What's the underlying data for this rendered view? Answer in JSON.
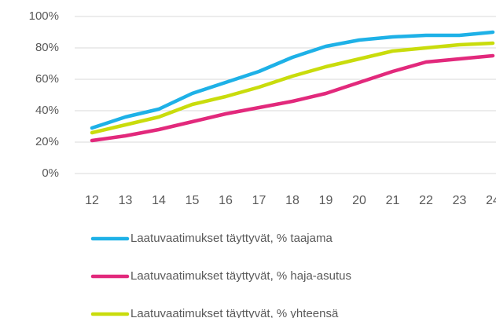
{
  "chart_data": {
    "type": "line",
    "categories": [
      "12",
      "13",
      "14",
      "15",
      "16",
      "17",
      "18",
      "19",
      "20",
      "21",
      "22",
      "23",
      "24"
    ],
    "series": [
      {
        "name": "Laatuvaatimukset täyttyvät, % taajama",
        "color": "#1eb1e7",
        "values": [
          29,
          36,
          41,
          51,
          58,
          65,
          74,
          81,
          85,
          87,
          88,
          88,
          90
        ]
      },
      {
        "name": "Laatuvaatimukset täyttyvät, % haja-asutus",
        "color": "#e2297c",
        "values": [
          21,
          24,
          28,
          33,
          38,
          42,
          46,
          51,
          58,
          65,
          71,
          73,
          75
        ]
      },
      {
        "name": "Laatuvaatimukset täyttyvät, % yhteensä",
        "color": "#c9dc0c",
        "values": [
          26,
          31,
          36,
          44,
          49,
          55,
          62,
          68,
          73,
          78,
          80,
          82,
          83
        ]
      }
    ],
    "ylim": [
      0,
      100
    ],
    "yticks": [
      {
        "value": 0,
        "label": "0%"
      },
      {
        "value": 20,
        "label": "20%"
      },
      {
        "value": 40,
        "label": "40%"
      },
      {
        "value": 60,
        "label": "60%"
      },
      {
        "value": 80,
        "label": "80%"
      },
      {
        "value": 100,
        "label": "100%"
      }
    ],
    "grid": true
  }
}
